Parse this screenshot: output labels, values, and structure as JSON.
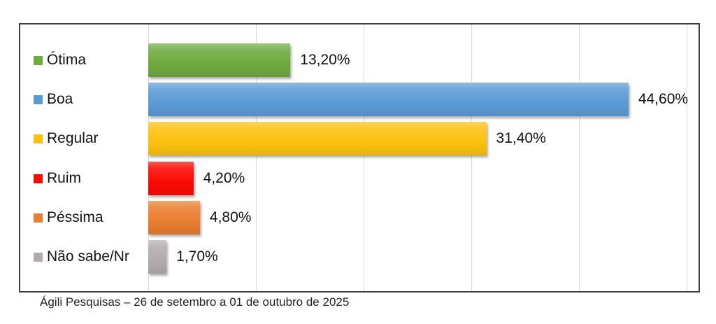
{
  "chart_data": {
    "type": "bar",
    "orientation": "horizontal",
    "categories": [
      "Ótima",
      "Boa",
      "Regular",
      "Ruim",
      "Péssima",
      "Não sabe/Nr"
    ],
    "values": [
      13.2,
      44.6,
      31.4,
      4.2,
      4.8,
      1.7
    ],
    "value_labels": [
      "13,20%",
      "44,60%",
      "31,40%",
      "4,20%",
      "4,80%",
      "1,70%"
    ],
    "bar_colors": [
      "#6faa3e",
      "#5b9bd5",
      "#fcc10f",
      "#fb0a04",
      "#ea7e30",
      "#b2adad"
    ],
    "xlim": [
      0,
      50
    ],
    "gridline_step_pct": 10,
    "grid": true,
    "legend_position": "left-of-bars",
    "frame_color": "#3f3f3f",
    "gridline_color": "#d9d9d9",
    "caption": "Ágili Pesquisas – 26 de setembro a 01 de outubro de 2025"
  }
}
